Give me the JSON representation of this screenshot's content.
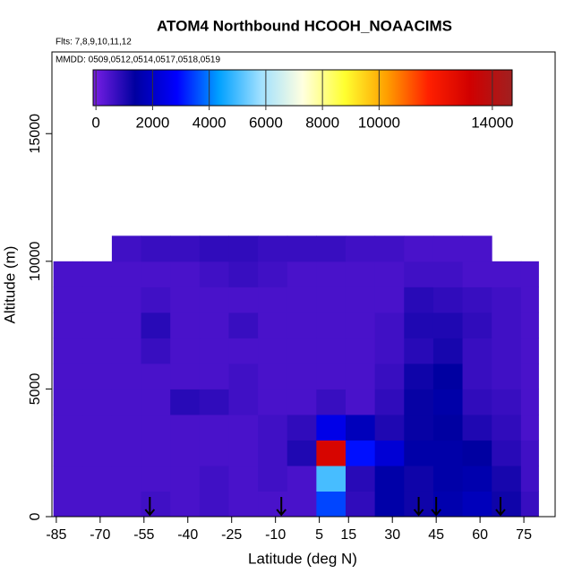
{
  "chart_data": {
    "type": "curtain",
    "title": "ATOM4 Northbound HCOOH_NOAACIMS",
    "subtitle": "Flts: 7,8,9,10,11,12",
    "annotation": "MMDD: 0509,0512,0514,0517,0518,0519",
    "x_label": "Latitude (deg N)",
    "y_label": "Altitude (m)",
    "xlim": [
      -86.5,
      85.7
    ],
    "ylim": [
      0,
      18200
    ],
    "xticks": [
      -85,
      -70,
      -55,
      -40,
      -25,
      -10,
      5,
      15,
      30,
      45,
      60,
      75
    ],
    "yticks": [
      0,
      5000,
      10000,
      15000
    ],
    "x_edges": [
      -86,
      -76,
      -66,
      -56,
      -46,
      -36,
      -26,
      -16,
      -6,
      4,
      14,
      24,
      34,
      44,
      54,
      64,
      74,
      80
    ],
    "y_edges": [
      0,
      1000,
      2000,
      3000,
      4000,
      5000,
      6000,
      7000,
      8000,
      9000,
      10000,
      11000
    ],
    "values": [
      [
        500,
        500,
        500,
        600,
        500,
        600,
        500,
        500,
        500,
        3500,
        800,
        1500,
        1200,
        1600,
        1800,
        1200,
        700
      ],
      [
        500,
        500,
        500,
        500,
        500,
        600,
        500,
        600,
        500,
        5000,
        900,
        1500,
        1200,
        1500,
        1600,
        1100,
        600
      ],
      [
        500,
        500,
        500,
        500,
        500,
        500,
        500,
        600,
        1000,
        13000,
        3000,
        2200,
        1500,
        1500,
        1400,
        900,
        600
      ],
      [
        500,
        500,
        500,
        500,
        500,
        500,
        500,
        600,
        800,
        2500,
        1800,
        1000,
        1300,
        1400,
        1000,
        800,
        500
      ],
      [
        500,
        500,
        500,
        500,
        900,
        800,
        600,
        500,
        500,
        700,
        500,
        800,
        1300,
        1500,
        800,
        700,
        500
      ],
      [
        500,
        500,
        500,
        500,
        500,
        500,
        600,
        500,
        500,
        500,
        500,
        700,
        1200,
        1400,
        700,
        600,
        500
      ],
      [
        500,
        500,
        500,
        700,
        500,
        500,
        500,
        500,
        500,
        500,
        500,
        600,
        900,
        1100,
        700,
        600,
        500
      ],
      [
        500,
        500,
        500,
        900,
        500,
        500,
        700,
        500,
        500,
        500,
        500,
        600,
        1000,
        1000,
        800,
        600,
        500
      ],
      [
        500,
        500,
        500,
        600,
        500,
        500,
        500,
        500,
        500,
        500,
        500,
        500,
        900,
        800,
        700,
        600,
        500
      ],
      [
        500,
        500,
        500,
        500,
        500,
        600,
        700,
        600,
        500,
        500,
        500,
        500,
        600,
        600,
        500,
        500,
        500
      ],
      [
        null,
        null,
        600,
        700,
        700,
        800,
        800,
        700,
        700,
        700,
        600,
        600,
        500,
        500,
        500,
        null,
        null
      ]
    ],
    "arrows": [
      -53,
      -8,
      39,
      45,
      67
    ],
    "colorbar": {
      "lim": [
        -100,
        14700
      ],
      "ticks": [
        0,
        2000,
        4000,
        6000,
        8000,
        10000,
        14000
      ],
      "colors": [
        "#7a1fe6",
        "#0000a0",
        "#0000ff",
        "#00a0ff",
        "#a0e0ff",
        "#ffffe0",
        "#ffff30",
        "#ffa000",
        "#ff2000",
        "#d00000",
        "#a02020"
      ]
    }
  }
}
